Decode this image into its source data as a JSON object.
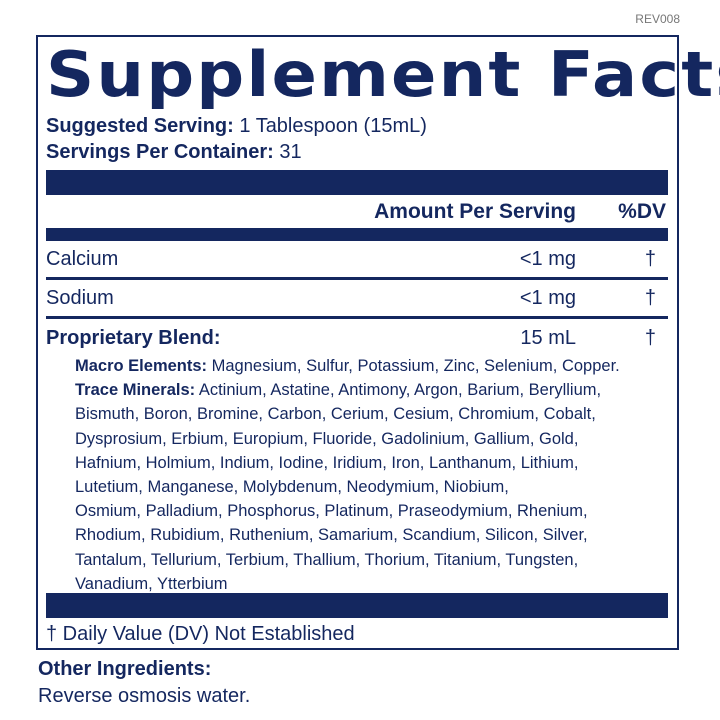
{
  "revision": "REV008",
  "title": "Supplement Facts",
  "serving": {
    "suggested_label": "Suggested Serving:",
    "suggested_value": " 1 Tablespoon (15mL)",
    "per_container_label": "Servings Per Container:",
    "per_container_value": " 31"
  },
  "header": {
    "amount": "Amount Per Serving",
    "dv": "%DV"
  },
  "rows": [
    {
      "name": "Calcium",
      "amount": "<1 mg",
      "dv": "†"
    },
    {
      "name": "Sodium",
      "amount": "<1 mg",
      "dv": "†"
    },
    {
      "name": "Proprietary Blend:",
      "amount": "15 mL",
      "dv": "†"
    }
  ],
  "blend": {
    "macro_label": "Macro Elements:",
    "macro_value": " Magnesium, Sulfur, Potassium, Zinc, Selenium, Copper.",
    "trace_label": "Trace Minerals:",
    "trace_lines": [
      " Actinium, Astatine, Antimony, Argon, Barium, Beryllium,",
      "Bismuth, Boron, Bromine, Carbon, Cerium, Cesium, Chromium, Cobalt,",
      "Dysprosium, Erbium, Europium, Fluoride, Gadolinium, Gallium, Gold,",
      "Hafnium, Holmium, Indium, Iodine, Iridium, Iron, Lanthanum, Lithium,",
      "Lutetium, Manganese, Molybdenum, Neodymium, Niobium,",
      "Osmium, Palladium, Phosphorus, Platinum, Praseodymium, Rhenium,",
      "Rhodium, Rubidium, Ruthenium, Samarium, Scandium, Silicon, Silver,",
      "Tantalum, Tellurium, Terbium, Thallium, Thorium, Titanium, Tungsten,",
      "Vanadium, Ytterbium"
    ]
  },
  "footnote": "† Daily Value (DV) Not Established",
  "other_ingredients": {
    "label": "Other Ingredients:",
    "value": "Reverse osmosis water."
  },
  "colors": {
    "navy": "#14275f"
  }
}
